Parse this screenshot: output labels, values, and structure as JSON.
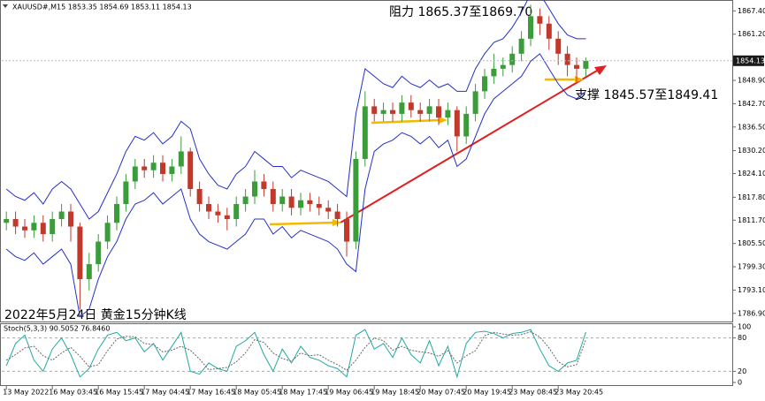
{
  "chart_data": {
    "type": "candlestick",
    "header": "XAUUSD#,M15 1853.35 1854.69 1853.11 1854.13",
    "annotations": [
      "阻力 1865.37至1869.70",
      "支撑 1845.57至1849.41",
      "2022年5月24日 黄金15分钟K线"
    ],
    "categories": [
      "13 May 2022",
      null,
      null,
      null,
      null,
      "16 May 03:45",
      null,
      null,
      null,
      null,
      "16 May 15:45",
      null,
      null,
      null,
      null,
      "17 May 04:45",
      null,
      null,
      null,
      null,
      "17 May 16:45",
      null,
      null,
      null,
      null,
      "18 May 05:45",
      null,
      null,
      null,
      null,
      "18 May 17:45",
      null,
      null,
      null,
      null,
      "19 May 06:45",
      null,
      null,
      null,
      null,
      "19 May 18:45",
      null,
      null,
      null,
      null,
      "20 May 07:45",
      null,
      null,
      null,
      null,
      "20 May 19:45",
      null,
      null,
      null,
      null,
      "23 May 08:45",
      null,
      null,
      null,
      null,
      "23 May 20:45",
      null,
      null,
      null
    ],
    "open": [
      1811,
      1812,
      1810,
      1809,
      1811,
      1808,
      1812,
      1814,
      1810,
      1796,
      1800,
      1806,
      1811,
      1816,
      1822,
      1826,
      1825,
      1827,
      1824,
      1826,
      1830,
      1820,
      1816,
      1814,
      1813,
      1812,
      1816,
      1818,
      1822,
      1820,
      1816,
      1818,
      1815,
      1817,
      1816,
      1815,
      1814,
      1812,
      1806,
      1828,
      1842,
      1840,
      1841,
      1840,
      1843,
      1841,
      1840,
      1842,
      1839,
      1841,
      1834,
      1840,
      1846,
      1850,
      1852,
      1853,
      1856,
      1860,
      1866,
      1864,
      1860,
      1856,
      1853,
      1852
    ],
    "high": [
      1814,
      1814,
      1812,
      1813,
      1813,
      1814,
      1816,
      1816,
      1811,
      1803,
      1808,
      1813,
      1818,
      1824,
      1828,
      1828,
      1829,
      1829,
      1828,
      1834,
      1831,
      1822,
      1818,
      1816,
      1815,
      1818,
      1820,
      1825,
      1824,
      1822,
      1820,
      1820,
      1819,
      1819,
      1818,
      1817,
      1816,
      1814,
      1830,
      1846,
      1844,
      1843,
      1843,
      1845,
      1845,
      1843,
      1844,
      1844,
      1843,
      1842,
      1842,
      1848,
      1852,
      1856,
      1855,
      1858,
      1862,
      1869,
      1868,
      1866,
      1862,
      1858,
      1855,
      1855
    ],
    "low": [
      1809,
      1808,
      1807,
      1807,
      1806,
      1806,
      1810,
      1806,
      1788,
      1793,
      1798,
      1804,
      1809,
      1814,
      1820,
      1823,
      1823,
      1822,
      1822,
      1824,
      1818,
      1814,
      1812,
      1811,
      1809,
      1810,
      1814,
      1816,
      1818,
      1814,
      1814,
      1813,
      1813,
      1814,
      1813,
      1812,
      1810,
      1802,
      1804,
      1826,
      1838,
      1838,
      1838,
      1838,
      1839,
      1838,
      1838,
      1837,
      1837,
      1830,
      1832,
      1838,
      1844,
      1848,
      1850,
      1851,
      1854,
      1858,
      1861,
      1857,
      1853,
      1850,
      1848,
      1850
    ],
    "close": [
      1812,
      1810,
      1809,
      1811,
      1808,
      1812,
      1814,
      1810,
      1796,
      1800,
      1806,
      1811,
      1816,
      1822,
      1826,
      1825,
      1827,
      1824,
      1826,
      1830,
      1820,
      1816,
      1814,
      1813,
      1812,
      1816,
      1818,
      1822,
      1820,
      1816,
      1818,
      1815,
      1817,
      1816,
      1815,
      1814,
      1812,
      1806,
      1828,
      1842,
      1840,
      1841,
      1840,
      1843,
      1841,
      1840,
      1842,
      1839,
      1841,
      1834,
      1840,
      1846,
      1850,
      1852,
      1853,
      1856,
      1860,
      1866,
      1864,
      1860,
      1856,
      1853,
      1852,
      1854.13
    ],
    "up_color": "#3a9d3a",
    "down_color": "#c0392b",
    "bands": {
      "color": "#2430c8",
      "upper": [
        1820,
        1818,
        1817,
        1819,
        1816,
        1820,
        1822,
        1820,
        1816,
        1812,
        1814,
        1819,
        1824,
        1830,
        1834,
        1833,
        1835,
        1832,
        1834,
        1838,
        1836,
        1828,
        1824,
        1821,
        1820,
        1824,
        1826,
        1830,
        1828,
        1826,
        1826,
        1823,
        1825,
        1824,
        1823,
        1822,
        1820,
        1818,
        1840,
        1852,
        1850,
        1848,
        1847,
        1850,
        1848,
        1847,
        1849,
        1847,
        1848,
        1846,
        1846,
        1852,
        1856,
        1859,
        1860,
        1863,
        1867,
        1872,
        1872,
        1868,
        1864,
        1861,
        1860,
        1860
      ],
      "lower": [
        1804,
        1802,
        1801,
        1803,
        1800,
        1802,
        1804,
        1800,
        1786,
        1788,
        1796,
        1802,
        1806,
        1812,
        1816,
        1817,
        1819,
        1816,
        1818,
        1820,
        1812,
        1808,
        1806,
        1805,
        1804,
        1806,
        1808,
        1812,
        1812,
        1808,
        1810,
        1807,
        1809,
        1808,
        1807,
        1806,
        1804,
        1800,
        1798,
        1820,
        1830,
        1832,
        1833,
        1835,
        1834,
        1832,
        1834,
        1831,
        1833,
        1826,
        1828,
        1834,
        1840,
        1844,
        1846,
        1848,
        1850,
        1854,
        1856,
        1852,
        1848,
        1845,
        1844,
        1846
      ]
    },
    "ylim": [
      1784.5,
      1870.3
    ],
    "yticks": [
      {
        "value": 1867.4,
        "label": "1867.40"
      },
      {
        "value": 1861.2,
        "label": "1861.20"
      },
      {
        "value": 1848.9,
        "label": "1848.90"
      },
      {
        "value": 1842.7,
        "label": "1842.70"
      },
      {
        "value": 1836.5,
        "label": "1836.50"
      },
      {
        "value": 1830.2,
        "label": "1830.20"
      },
      {
        "value": 1824.1,
        "label": "1824.10"
      },
      {
        "value": 1817.8,
        "label": "1817.80"
      },
      {
        "value": 1811.7,
        "label": "1811.70"
      },
      {
        "value": 1805.5,
        "label": "1805.50"
      },
      {
        "value": 1799.3,
        "label": "1799.30"
      },
      {
        "value": 1793.1,
        "label": "1793.10"
      },
      {
        "value": 1786.9,
        "label": "1786.90"
      }
    ],
    "stoch": {
      "title": "Stoch(5,3,3) 90.5052 76.8460",
      "ylim": [
        0,
        100
      ],
      "yticks": [
        100,
        80,
        20,
        0
      ],
      "levels": [
        80,
        20
      ],
      "series": [
        {
          "color": "#20a8a0",
          "values": [
            30,
            70,
            85,
            40,
            20,
            60,
            80,
            50,
            10,
            25,
            60,
            85,
            90,
            75,
            80,
            55,
            70,
            40,
            65,
            90,
            20,
            15,
            35,
            25,
            20,
            65,
            75,
            90,
            50,
            20,
            60,
            35,
            65,
            45,
            40,
            30,
            25,
            10,
            85,
            95,
            60,
            70,
            45,
            80,
            50,
            35,
            75,
            30,
            65,
            10,
            70,
            90,
            92,
            88,
            80,
            88,
            90,
            95,
            60,
            30,
            20,
            35,
            40,
            90.5052
          ]
        },
        {
          "color": "#666666",
          "values": [
            40,
            50,
            62,
            65,
            48,
            40,
            53,
            63,
            47,
            28,
            32,
            57,
            78,
            83,
            82,
            70,
            68,
            55,
            58,
            65,
            58,
            42,
            23,
            25,
            27,
            37,
            53,
            77,
            72,
            53,
            43,
            38,
            53,
            48,
            50,
            40,
            32,
            22,
            40,
            63,
            80,
            75,
            58,
            65,
            58,
            55,
            53,
            47,
            57,
            35,
            48,
            57,
            84,
            90,
            87,
            85,
            86,
            91,
            82,
            62,
            37,
            28,
            32,
            76.846
          ]
        }
      ]
    }
  }
}
